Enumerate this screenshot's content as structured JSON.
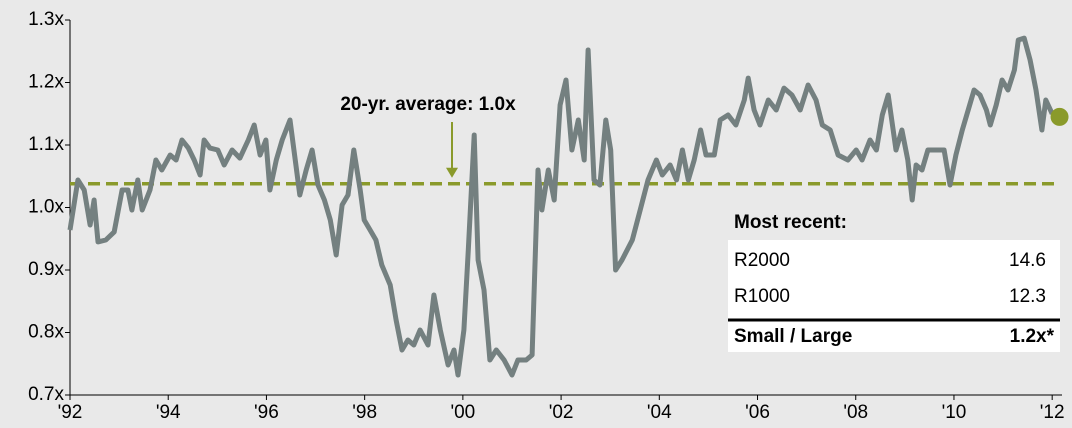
{
  "chart_data": {
    "type": "line",
    "x": [
      1992.0,
      1992.16,
      1992.29,
      1992.41,
      1992.49,
      1992.57,
      1992.73,
      1992.9,
      1993.06,
      1993.18,
      1993.26,
      1993.38,
      1993.47,
      1993.63,
      1993.75,
      1993.87,
      1994.04,
      1994.16,
      1994.28,
      1994.41,
      1994.53,
      1994.65,
      1994.73,
      1994.85,
      1995.01,
      1995.14,
      1995.3,
      1995.46,
      1995.63,
      1995.75,
      1995.87,
      1995.99,
      1996.07,
      1996.2,
      1996.32,
      1996.48,
      1996.6,
      1996.68,
      1996.81,
      1996.93,
      1997.05,
      1997.18,
      1997.3,
      1997.42,
      1997.54,
      1997.66,
      1997.78,
      1997.91,
      1997.99,
      1998.11,
      1998.23,
      1998.35,
      1998.52,
      1998.64,
      1998.76,
      1998.88,
      1999.0,
      1999.13,
      1999.29,
      1999.41,
      1999.54,
      1999.7,
      1999.82,
      1999.9,
      2000.02,
      2000.11,
      2000.23,
      2000.31,
      2000.43,
      2000.55,
      2000.68,
      2000.84,
      2001.0,
      2001.12,
      2001.29,
      2001.41,
      2001.53,
      2001.61,
      2001.74,
      2001.86,
      2001.98,
      2002.1,
      2002.22,
      2002.35,
      2002.47,
      2002.55,
      2002.67,
      2002.79,
      2002.91,
      2003.01,
      2003.11,
      2003.24,
      2003.45,
      2003.61,
      2003.77,
      2003.94,
      2004.06,
      2004.22,
      2004.35,
      2004.47,
      2004.59,
      2004.71,
      2004.84,
      2004.95,
      2005.12,
      2005.24,
      2005.4,
      2005.56,
      2005.73,
      2005.81,
      2005.93,
      2006.05,
      2006.22,
      2006.38,
      2006.54,
      2006.7,
      2006.87,
      2007.03,
      2007.19,
      2007.32,
      2007.48,
      2007.64,
      2007.84,
      2008.01,
      2008.13,
      2008.29,
      2008.42,
      2008.54,
      2008.66,
      2008.82,
      2008.94,
      2009.06,
      2009.15,
      2009.23,
      2009.35,
      2009.47,
      2009.64,
      2009.8,
      2009.92,
      2010.04,
      2010.17,
      2010.29,
      2010.41,
      2010.53,
      2010.66,
      2010.74,
      2010.86,
      2010.98,
      2011.1,
      2011.23,
      2011.31,
      2011.43,
      2011.55,
      2011.67,
      2011.79,
      2011.87,
      2012.0
    ],
    "series": [
      {
        "name": "Small / Large",
        "color": "#748080",
        "values": [
          0.964,
          1.044,
          1.028,
          0.972,
          1.012,
          0.945,
          0.948,
          0.961,
          1.028,
          1.028,
          0.996,
          1.044,
          0.996,
          1.028,
          1.076,
          1.06,
          1.084,
          1.076,
          1.108,
          1.095,
          1.076,
          1.052,
          1.108,
          1.095,
          1.092,
          1.068,
          1.092,
          1.079,
          1.108,
          1.132,
          1.084,
          1.108,
          1.028,
          1.076,
          1.108,
          1.14,
          1.068,
          1.02,
          1.06,
          1.092,
          1.036,
          1.012,
          0.98,
          0.924,
          1.004,
          1.02,
          1.092,
          1.028,
          0.98,
          0.964,
          0.948,
          0.908,
          0.876,
          0.82,
          0.772,
          0.788,
          0.78,
          0.804,
          0.78,
          0.86,
          0.804,
          0.748,
          0.772,
          0.732,
          0.804,
          0.932,
          1.116,
          0.916,
          0.868,
          0.756,
          0.772,
          0.756,
          0.732,
          0.756,
          0.756,
          0.764,
          1.06,
          0.996,
          1.06,
          1.012,
          1.164,
          1.204,
          1.092,
          1.14,
          1.076,
          1.252,
          1.044,
          1.036,
          1.14,
          1.092,
          0.9,
          0.916,
          0.948,
          0.996,
          1.044,
          1.076,
          1.052,
          1.068,
          1.044,
          1.092,
          1.044,
          1.076,
          1.124,
          1.084,
          1.084,
          1.14,
          1.148,
          1.132,
          1.172,
          1.207,
          1.156,
          1.132,
          1.172,
          1.156,
          1.191,
          1.18,
          1.156,
          1.196,
          1.172,
          1.132,
          1.124,
          1.084,
          1.076,
          1.092,
          1.076,
          1.108,
          1.092,
          1.148,
          1.18,
          1.092,
          1.124,
          1.076,
          1.012,
          1.068,
          1.06,
          1.092,
          1.092,
          1.092,
          1.036,
          1.084,
          1.124,
          1.156,
          1.188,
          1.18,
          1.156,
          1.132,
          1.164,
          1.204,
          1.188,
          1.22,
          1.268,
          1.271,
          1.236,
          1.188,
          1.124,
          1.172,
          1.15
        ]
      }
    ],
    "latest": {
      "x": 2012.15,
      "value": 1.145,
      "color": "#8a9a2b"
    },
    "average": {
      "value": 1.038,
      "label": "20-yr. average: 1.0x",
      "color": "#8a9a2b"
    },
    "xlim": [
      1992,
      2012.2
    ],
    "xticks": [
      {
        "value": 1992,
        "label": "'92"
      },
      {
        "value": 1994,
        "label": "'94"
      },
      {
        "value": 1996,
        "label": "'96"
      },
      {
        "value": 1998,
        "label": "'98"
      },
      {
        "value": 2000,
        "label": "'00"
      },
      {
        "value": 2002,
        "label": "'02"
      },
      {
        "value": 2004,
        "label": "'04"
      },
      {
        "value": 2006,
        "label": "'06"
      },
      {
        "value": 2008,
        "label": "'08"
      },
      {
        "value": 2010,
        "label": "'10"
      },
      {
        "value": 2012,
        "label": "'12"
      }
    ],
    "ylim": [
      0.7,
      1.3
    ],
    "yticks": [
      {
        "value": 0.7,
        "label": "0.7x"
      },
      {
        "value": 0.8,
        "label": "0.8x"
      },
      {
        "value": 0.9,
        "label": "0.9x"
      },
      {
        "value": 1.0,
        "label": "1.0x"
      },
      {
        "value": 1.1,
        "label": "1.1x"
      },
      {
        "value": 1.2,
        "label": "1.2x"
      },
      {
        "value": 1.3,
        "label": "1.3x"
      }
    ],
    "grid": false
  },
  "table": {
    "title": "Most recent:",
    "rows": [
      [
        "R2000",
        "14.6"
      ],
      [
        "R1000",
        "12.3"
      ]
    ],
    "total": [
      "Small / Large",
      "1.2x*"
    ]
  }
}
